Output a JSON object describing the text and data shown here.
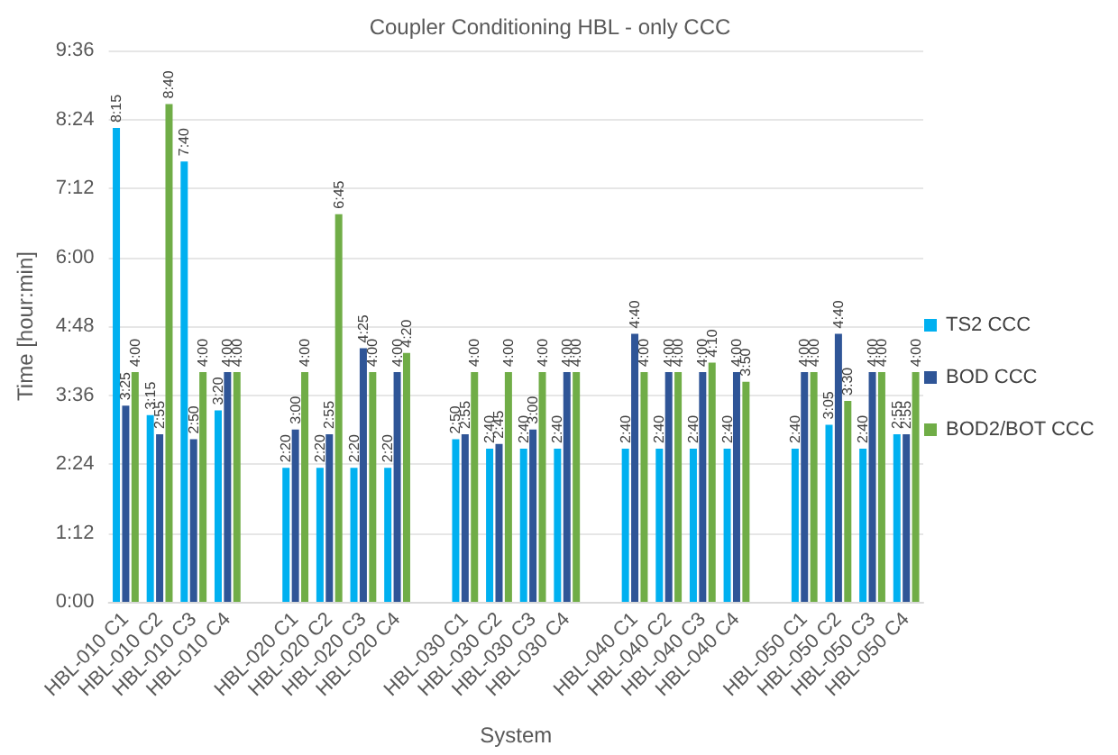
{
  "chart_data": {
    "type": "bar",
    "title": "Coupler Conditioning HBL - only CCC",
    "xlabel": "System",
    "ylabel": "Time [hour:min]",
    "categories": [
      "HBL-010 C1",
      "HBL-010 C2",
      "HBL-010 C3",
      "HBL-010 C4",
      null,
      "HBL-020 C1",
      "HBL-020 C2",
      "HBL-020 C3",
      "HBL-020 C4",
      null,
      "HBL-030 C1",
      "HBL-030 C2",
      "HBL-030 C3",
      "HBL-030 C4",
      null,
      "HBL-040 C1",
      "HBL-040 C2",
      "HBL-040 C3",
      "HBL-040 C4",
      null,
      "HBL-050 C1",
      "HBL-050 C2",
      "HBL-050 C3",
      "HBL-050 C4"
    ],
    "series": [
      {
        "name": "TS2 CCC",
        "color": "#00b0f0",
        "values": [
          495,
          195,
          460,
          200,
          null,
          140,
          140,
          140,
          140,
          null,
          170,
          160,
          160,
          160,
          null,
          160,
          160,
          160,
          160,
          null,
          160,
          185,
          160,
          175
        ],
        "value_labels": [
          "8:15",
          "3:15",
          "7:40",
          "3:20",
          null,
          "2:20",
          "2:20",
          "2:20",
          "2:20",
          null,
          "2:50",
          "2:40",
          "2:40",
          "2:40",
          null,
          "2:40",
          "2:40",
          "2:40",
          "2:40",
          null,
          "2:40",
          "3:05",
          "2:40",
          "2:55"
        ]
      },
      {
        "name": "BOD CCC",
        "color": "#2f5597",
        "values": [
          205,
          175,
          170,
          240,
          null,
          180,
          175,
          265,
          240,
          null,
          175,
          165,
          180,
          240,
          null,
          280,
          240,
          240,
          240,
          null,
          240,
          280,
          240,
          175
        ],
        "value_labels": [
          "3:25",
          "2:55",
          "2:50",
          "4:00",
          null,
          "3:00",
          "2:55",
          "4:25",
          "4:00",
          null,
          "2:55",
          "2:45",
          "3:00",
          "4:00",
          null,
          "4:40",
          "4:00",
          "4:00",
          "4:00",
          null,
          "4:00",
          "4:40",
          "4:00",
          "2:55"
        ]
      },
      {
        "name": "BOD2/BOT CCC",
        "color": "#70ad47",
        "values": [
          240,
          520,
          240,
          240,
          null,
          240,
          405,
          240,
          260,
          null,
          240,
          240,
          240,
          240,
          null,
          240,
          240,
          250,
          230,
          null,
          240,
          210,
          240,
          240
        ],
        "value_labels": [
          "4:00",
          "8:40",
          "4:00",
          "4:00",
          null,
          "4:00",
          "6:45",
          "4:00",
          "4:20",
          null,
          "4:00",
          "4:00",
          "4:00",
          "4:00",
          null,
          "4:00",
          "4:00",
          "4:10",
          "3:50",
          null,
          "4:00",
          "3:30",
          "4:00",
          "4:00"
        ]
      }
    ],
    "ylim": [
      0,
      576
    ],
    "yticks": [
      {
        "value": 0,
        "label": "0:00"
      },
      {
        "value": 72,
        "label": "1:12"
      },
      {
        "value": 144,
        "label": "2:24"
      },
      {
        "value": 216,
        "label": "3:36"
      },
      {
        "value": 288,
        "label": "4:48"
      },
      {
        "value": 360,
        "label": "6:00"
      },
      {
        "value": 432,
        "label": "7:12"
      },
      {
        "value": 504,
        "label": "8:24"
      },
      {
        "value": 576,
        "label": "9:36"
      }
    ],
    "grid": "y",
    "legend": "right"
  }
}
